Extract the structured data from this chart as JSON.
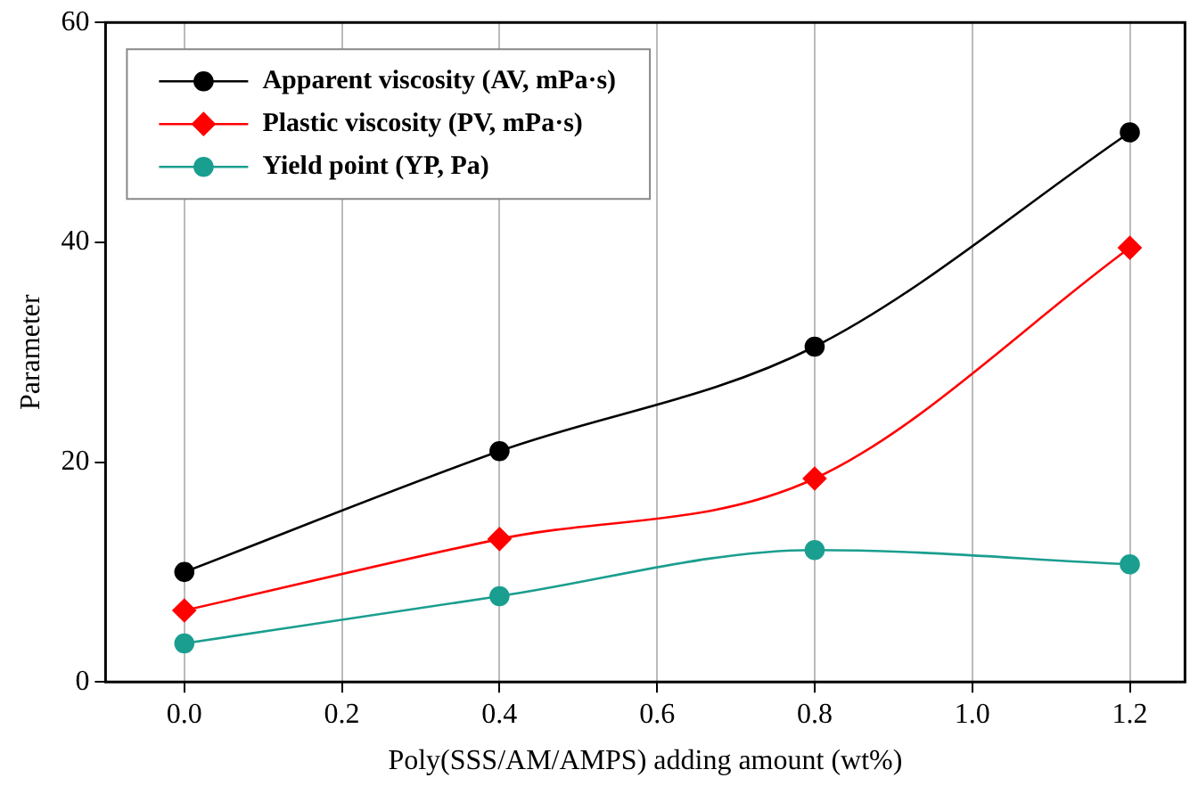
{
  "chart_data": {
    "type": "line",
    "xlabel": "Poly(SSS/AM/AMPS) adding amount (wt%)",
    "ylabel": "Parameter",
    "x": [
      0,
      0.4,
      0.8,
      1.2
    ],
    "series": [
      {
        "name": "Apparent viscosity (AV, mPa·s)",
        "color": "#000000",
        "marker": "circle",
        "values": [
          10,
          21,
          30.5,
          50
        ]
      },
      {
        "name": "Plastic viscosity (PV, mPa·s)",
        "color": "#ff0000",
        "marker": "diamond",
        "values": [
          6.5,
          13,
          18.5,
          39.5
        ]
      },
      {
        "name": "Yield point (YP, Pa)",
        "color": "#1a9e8f",
        "marker": "circle",
        "values": [
          3.5,
          7.8,
          12,
          10.7
        ]
      }
    ],
    "xlim": [
      -0.1,
      1.27
    ],
    "xticks": [
      {
        "value": 0,
        "label": "0.0"
      },
      {
        "value": 0.2,
        "label": "0.2"
      },
      {
        "value": 0.4,
        "label": "0.4"
      },
      {
        "value": 0.6,
        "label": "0.6"
      },
      {
        "value": 0.8,
        "label": "0.8"
      },
      {
        "value": 1,
        "label": "1.0"
      },
      {
        "value": 1.2,
        "label": "1.2"
      }
    ],
    "ylim": [
      0,
      60
    ],
    "yticks": [
      0,
      20,
      40,
      60
    ],
    "grid": "x",
    "legend": "top left",
    "line_style": "solid"
  }
}
